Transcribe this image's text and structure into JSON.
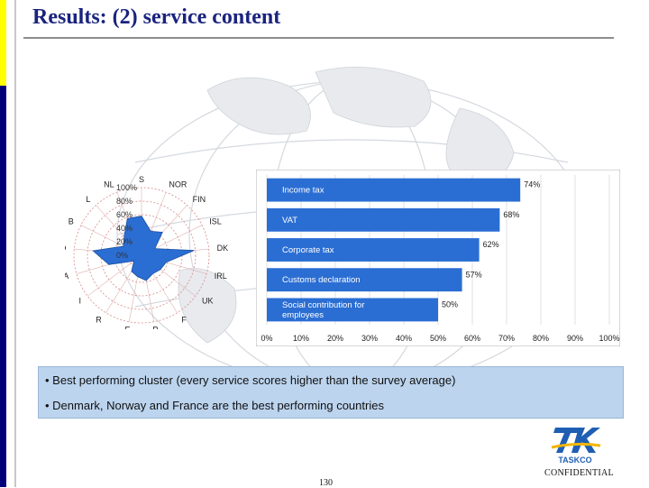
{
  "slide": {
    "title": "Results: (2) service content",
    "bullets": [
      "• Best performing cluster (every service scores higher than the survey average)",
      "• Denmark, Norway and France are the best performing countries"
    ],
    "footer_confidential": "CONFIDENTIAL",
    "page_number": "130",
    "logo_text": "TASKCO"
  },
  "colors": {
    "accent": "#1a237e",
    "bar": "#2b6ed3",
    "radar": "#2b6ed3",
    "callout": "#bcd4ee"
  },
  "chart_data": [
    {
      "type": "radar",
      "categories": [
        "S",
        "NOR",
        "FIN",
        "ISL",
        "DK",
        "IRL",
        "UK",
        "F",
        "P",
        "E",
        "R",
        "I",
        "A",
        "D",
        "B",
        "L",
        "NL"
      ],
      "scale_labels": [
        "100%",
        "80%",
        "60%",
        "40%",
        "20%",
        "0%"
      ],
      "ylim": [
        0,
        100
      ],
      "series": [
        {
          "values": [
            58,
            38,
            46,
            22,
            78,
            38,
            35,
            32,
            38,
            32,
            28,
            14,
            50,
            72,
            30,
            38,
            58
          ]
        }
      ]
    },
    {
      "type": "bar",
      "orientation": "horizontal",
      "categories": [
        "Income tax",
        "VAT",
        "Corporate tax",
        "Customs declaration",
        "Social contribution for employees"
      ],
      "values": [
        74,
        68,
        62,
        57,
        50
      ],
      "value_labels": [
        "74%",
        "68%",
        "62%",
        "57%",
        "50%"
      ],
      "xlim": [
        0,
        100
      ],
      "xticks": [
        "0%",
        "10%",
        "20%",
        "30%",
        "40%",
        "50%",
        "60%",
        "70%",
        "80%",
        "90%",
        "100%"
      ],
      "grid": true
    }
  ]
}
